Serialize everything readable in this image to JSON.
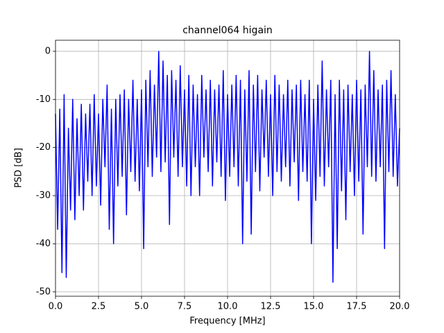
{
  "chart_data": {
    "type": "line",
    "title": "channel064 higain",
    "xlabel": "Frequency [MHz]",
    "ylabel": "PSD [dB]",
    "color": "#0000ff",
    "grid": true,
    "xlim": [
      0,
      20
    ],
    "ylim": [
      -50.9,
      2.3
    ],
    "xticks": [
      {
        "value": 0,
        "label": "0.0"
      },
      2.5,
      {
        "value": 5,
        "label": "5.0"
      },
      7.5,
      {
        "value": 10,
        "label": "10.0"
      },
      12.5,
      {
        "value": 15,
        "label": "15.0"
      },
      17.5,
      {
        "value": 20,
        "label": "20.0"
      }
    ],
    "yticks": [
      0,
      -10,
      -20,
      -30,
      -40,
      -50
    ],
    "x": [
      0,
      0.125,
      0.25,
      0.375,
      0.5,
      0.625,
      0.75,
      0.875,
      1,
      1.125,
      1.25,
      1.375,
      1.5,
      1.625,
      1.75,
      1.875,
      2,
      2.125,
      2.25,
      2.375,
      2.5,
      2.625,
      2.75,
      2.875,
      3,
      3.125,
      3.25,
      3.375,
      3.5,
      3.625,
      3.75,
      3.875,
      4,
      4.125,
      4.25,
      4.375,
      4.5,
      4.625,
      4.75,
      4.875,
      5,
      5.125,
      5.25,
      5.375,
      5.5,
      5.625,
      5.75,
      5.875,
      6,
      6.125,
      6.25,
      6.375,
      6.5,
      6.625,
      6.75,
      6.875,
      7,
      7.125,
      7.25,
      7.375,
      7.5,
      7.625,
      7.75,
      7.875,
      8,
      8.125,
      8.25,
      8.375,
      8.5,
      8.625,
      8.75,
      8.875,
      9,
      9.125,
      9.25,
      9.375,
      9.5,
      9.625,
      9.75,
      9.875,
      10,
      10.125,
      10.25,
      10.375,
      10.5,
      10.625,
      10.75,
      10.875,
      11,
      11.125,
      11.25,
      11.375,
      11.5,
      11.625,
      11.75,
      11.875,
      12,
      12.125,
      12.25,
      12.375,
      12.5,
      12.625,
      12.75,
      12.875,
      13,
      13.125,
      13.25,
      13.375,
      13.5,
      13.625,
      13.75,
      13.875,
      14,
      14.125,
      14.25,
      14.375,
      14.5,
      14.625,
      14.75,
      14.875,
      15,
      15.125,
      15.25,
      15.375,
      15.5,
      15.625,
      15.75,
      15.875,
      16,
      16.125,
      16.25,
      16.375,
      16.5,
      16.625,
      16.75,
      16.875,
      17,
      17.125,
      17.25,
      17.375,
      17.5,
      17.625,
      17.75,
      17.875,
      18,
      18.125,
      18.25,
      18.375,
      18.5,
      18.625,
      18.75,
      18.875,
      19,
      19.125,
      19.25,
      19.375,
      19.5,
      19.625,
      19.75,
      19.875,
      20
    ],
    "values": [
      -13,
      -37,
      -12,
      -46,
      -9,
      -47,
      -16,
      -33,
      -10,
      -35,
      -14,
      -30,
      -11,
      -33,
      -13,
      -27,
      -11,
      -30,
      -9,
      -28,
      -13,
      -32,
      -10,
      -24,
      -7,
      -37,
      -12,
      -40,
      -10,
      -28,
      -9,
      -26,
      -8,
      -34,
      -10,
      -25,
      -6,
      -27,
      -10,
      -29,
      -8,
      -41,
      -6,
      -24,
      -4,
      -26,
      -7,
      -22,
      0,
      -25,
      -2,
      -23,
      -5,
      -36,
      -4,
      -22,
      -6,
      -26,
      -3,
      -24,
      -8,
      -28,
      -5,
      -30,
      -7,
      -24,
      -9,
      -30,
      -5,
      -22,
      -8,
      -25,
      -6,
      -28,
      -8,
      -23,
      -7,
      -26,
      -4,
      -31,
      -9,
      -26,
      -7,
      -24,
      -5,
      -28,
      -6,
      -40,
      -8,
      -27,
      -4,
      -38,
      -7,
      -25,
      -5,
      -29,
      -8,
      -22,
      -6,
      -26,
      -9,
      -30,
      -5,
      -25,
      -7,
      -27,
      -9,
      -24,
      -6,
      -28,
      -8,
      -23,
      -7,
      -31,
      -6,
      -25,
      -9,
      -27,
      -6,
      -40,
      -10,
      -31,
      -7,
      -26,
      -2,
      -28,
      -8,
      -24,
      -6,
      -48,
      -9,
      -41,
      -6,
      -29,
      -8,
      -35,
      -7,
      -25,
      -9,
      -30,
      -6,
      -27,
      -8,
      -38,
      -7,
      -24,
      0,
      -26,
      -4,
      -27,
      -8,
      -24,
      -7,
      -41,
      -6,
      -25,
      -4,
      -26,
      -9,
      -28,
      -16
    ]
  }
}
